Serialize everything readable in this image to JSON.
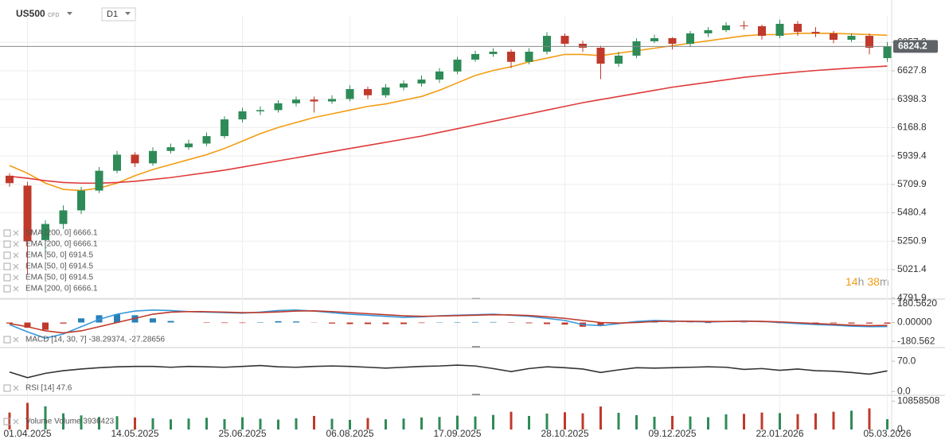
{
  "header": {
    "symbol": "US500",
    "instrument_type": "CFD",
    "timeframe": "D1"
  },
  "countdown": {
    "hours": "14",
    "hour_unit": "h",
    "minutes": "38",
    "minute_unit": "m"
  },
  "chart_data": [
    {
      "type": "candlestick",
      "categories": [
        null,
        "01.04.2025",
        null,
        null,
        null,
        null,
        null,
        "14.05.2025",
        null,
        null,
        null,
        null,
        null,
        "25.06.2025",
        null,
        null,
        null,
        null,
        null,
        "06.08.2025",
        null,
        null,
        null,
        null,
        null,
        "17.09.2025",
        null,
        null,
        null,
        null,
        null,
        "28.10.2025",
        null,
        null,
        null,
        null,
        null,
        "09.12.2025",
        null,
        null,
        null,
        null,
        null,
        "22.01.2026",
        null,
        null,
        null,
        null,
        null,
        "05.03.2026"
      ],
      "open": [
        5780,
        5700,
        5260,
        5390,
        5500,
        5660,
        5820,
        5950,
        5880,
        5980,
        6010,
        6040,
        6100,
        6235,
        6300,
        6310,
        6365,
        6395,
        6380,
        6400,
        6480,
        6430,
        6493,
        6525,
        6557,
        6622,
        6718,
        6763,
        6782,
        6700,
        6782,
        6910,
        6846,
        6814,
        6685,
        6750,
        6866,
        6891,
        6846,
        6930,
        6956,
        6994,
        6988,
        6910,
        7007,
        6942,
        6930,
        6878,
        6910,
        6730
      ],
      "high": [
        5800,
        5730,
        5420,
        5540,
        5690,
        5850,
        5980,
        5970,
        6010,
        6040,
        6070,
        6130,
        6260,
        6330,
        6340,
        6390,
        6420,
        6420,
        6430,
        6510,
        6500,
        6520,
        6550,
        6590,
        6650,
        6740,
        6790,
        6810,
        6800,
        6810,
        6940,
        6930,
        6870,
        6830,
        6780,
        6890,
        6920,
        6900,
        6950,
        6980,
        7020,
        7030,
        7000,
        7040,
        7030,
        6980,
        6950,
        6930,
        6930,
        6860
      ],
      "low": [
        5690,
        4980,
        5150,
        5350,
        5470,
        5640,
        5800,
        5850,
        5860,
        5960,
        5990,
        6020,
        6080,
        6210,
        6270,
        6290,
        6340,
        6290,
        6360,
        6380,
        6400,
        6410,
        6470,
        6500,
        6530,
        6600,
        6700,
        6740,
        6650,
        6680,
        6760,
        6820,
        6780,
        6560,
        6660,
        6730,
        6850,
        6800,
        6820,
        6900,
        6940,
        6960,
        6880,
        6890,
        6910,
        6900,
        6850,
        6860,
        6760,
        6700
      ],
      "close": [
        5720,
        5250,
        5390,
        5500,
        5660,
        5820,
        5950,
        5880,
        5980,
        6010,
        6040,
        6100,
        6235,
        6300,
        6310,
        6365,
        6395,
        6380,
        6400,
        6480,
        6430,
        6493,
        6525,
        6557,
        6622,
        6718,
        6763,
        6782,
        6700,
        6782,
        6910,
        6846,
        6814,
        6685,
        6750,
        6866,
        6891,
        6846,
        6930,
        6956,
        6994,
        6988,
        6910,
        7007,
        6942,
        6930,
        6878,
        6910,
        6814,
        6824.2
      ],
      "up_color": "#2e8b57",
      "down_color": "#c0392b",
      "series": [
        {
          "color": "#f39c12",
          "values": [
            5862,
            5800,
            5720,
            5670,
            5660,
            5680,
            5720,
            5780,
            5830,
            5870,
            5910,
            5950,
            6000,
            6060,
            6120,
            6170,
            6210,
            6250,
            6280,
            6310,
            6340,
            6360,
            6390,
            6420,
            6470,
            6530,
            6590,
            6630,
            6660,
            6700,
            6730,
            6760,
            6760,
            6750,
            6770,
            6790,
            6810,
            6830,
            6850,
            6870,
            6890,
            6910,
            6920,
            6920,
            6930,
            6930,
            6930,
            6925,
            6920,
            6914.5
          ]
        },
        {
          "color": "#e03a3a",
          "values": [
            5775,
            5760,
            5740,
            5725,
            5720,
            5720,
            5725,
            5735,
            5750,
            5765,
            5785,
            5805,
            5825,
            5850,
            5875,
            5900,
            5925,
            5950,
            5975,
            6000,
            6025,
            6050,
            6075,
            6100,
            6130,
            6160,
            6190,
            6220,
            6250,
            6280,
            6310,
            6340,
            6370,
            6395,
            6420,
            6445,
            6470,
            6495,
            6515,
            6535,
            6555,
            6575,
            6590,
            6605,
            6618,
            6630,
            6640,
            6650,
            6658,
            6666.1
          ]
        }
      ],
      "legend": [
        "SMA [200, 0]  6666.1",
        "EMA [200, 0]  6666.1",
        "EMA [50, 0]  6914.5",
        "EMA [50, 0]  6914.5",
        "EMA [50, 0]  6914.5",
        "EMA [200, 0]  6666.1"
      ],
      "ylim": [
        4790,
        7071
      ],
      "yticks": [
        4791.9,
        5021.4,
        5250.9,
        5480.4,
        5709.9,
        5939.4,
        6168.8,
        6398.3,
        6627.8,
        6857.2
      ],
      "grid": true
    },
    {
      "type": "macd",
      "histogram": [
        -10,
        -50,
        -70,
        -10,
        40,
        70,
        80,
        70,
        40,
        15,
        0,
        -4,
        -5,
        -5,
        4,
        13,
        10,
        -2,
        -10,
        -15,
        -15,
        -15,
        -15,
        -5,
        3,
        4,
        5,
        5,
        -3,
        -7,
        -15,
        -20,
        -40,
        -30,
        -5,
        10,
        10,
        3,
        -2,
        -5,
        0,
        3,
        -1,
        -6,
        -8,
        -10,
        -7,
        -10,
        -10,
        -11
      ],
      "pos_color": "#2980b9",
      "neg_color": "#c0392b",
      "series": [
        {
          "color": "#3498db",
          "values": [
            -20,
            -90,
            -150,
            -110,
            -40,
            30,
            80,
            110,
            120,
            115,
            105,
            100,
            95,
            90,
            100,
            115,
            120,
            110,
            95,
            80,
            70,
            60,
            50,
            55,
            65,
            70,
            75,
            80,
            70,
            60,
            40,
            20,
            -20,
            -30,
            -10,
            10,
            20,
            15,
            10,
            5,
            10,
            15,
            10,
            0,
            -10,
            -20,
            -25,
            -35,
            -40,
            -38.29374
          ]
        },
        {
          "color": "#c0392b",
          "values": [
            -10,
            -40,
            -80,
            -100,
            -80,
            -40,
            0,
            40,
            80,
            100,
            105,
            104,
            100,
            95,
            96,
            102,
            110,
            112,
            105,
            95,
            85,
            75,
            65,
            60,
            62,
            66,
            70,
            75,
            73,
            67,
            55,
            40,
            20,
            0,
            -5,
            0,
            10,
            12,
            12,
            10,
            10,
            12,
            11,
            6,
            -2,
            -10,
            -18,
            -25,
            -30,
            -27.28656
          ]
        }
      ],
      "legend": "MACD [14, 30, 7]  -38.29374, -27.28656",
      "ylim": [
        -210,
        210
      ],
      "yticks": [
        {
          "value": 180.562,
          "label": "180.5620"
        },
        {
          "value": 0,
          "label": "0.00000"
        },
        -180.562
      ],
      "grid": false
    },
    {
      "type": "line",
      "series": [
        {
          "color": "#333333",
          "values": [
            45,
            32,
            42,
            48,
            52,
            55,
            57,
            58,
            58,
            56,
            58,
            57,
            56,
            58,
            60,
            57,
            56,
            58,
            59,
            58,
            56,
            54,
            56,
            58,
            59,
            61,
            59,
            53,
            46,
            53,
            57,
            55,
            52,
            44,
            50,
            55,
            54,
            55,
            56,
            57,
            56,
            51,
            53,
            49,
            52,
            48,
            47,
            44,
            40,
            47.6
          ]
        }
      ],
      "legend": "RSI [14]  47.6",
      "ylim": [
        -7,
        96
      ],
      "yticks": [
        {
          "value": 70,
          "label": "70.0"
        },
        {
          "value": 0,
          "label": "0.0"
        }
      ],
      "grid": false
    },
    {
      "type": "bar",
      "values": [
        6500000,
        10200000,
        8900000,
        6200000,
        5400000,
        4800000,
        5100000,
        4600000,
        4300000,
        3900000,
        4200000,
        4500000,
        4000000,
        4700000,
        4100000,
        3800000,
        4300000,
        5200000,
        4100000,
        3700000,
        4400000,
        3900000,
        4200000,
        4600000,
        4800000,
        5300000,
        5000000,
        5600000,
        6800000,
        5200000,
        6100000,
        6600000,
        6200000,
        8800000,
        6400000,
        5500000,
        4900000,
        5200000,
        5000000,
        4700000,
        5800000,
        6000000,
        6500000,
        6300000,
        5900000,
        6200000,
        6800000,
        7200000,
        8100000,
        3936423
      ],
      "up_color": "#2e8b57",
      "down_color": "#c0392b",
      "legend": "Volume  Volume  3936423",
      "ylim": [
        0,
        12800000
      ],
      "yticks": [
        10858508,
        0
      ],
      "grid": false
    }
  ]
}
